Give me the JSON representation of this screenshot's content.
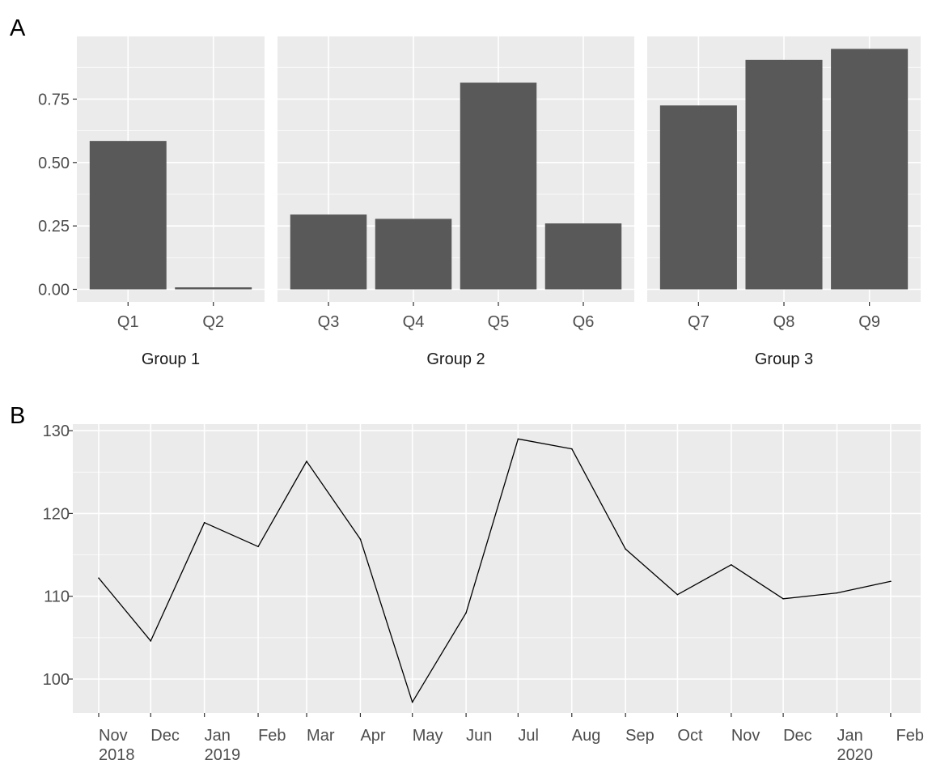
{
  "panel_tags": [
    "A",
    "B"
  ],
  "colors": {
    "panel_bg": "#ebebeb",
    "grid": "#ffffff",
    "bar_fill": "#595959",
    "line": "#000000",
    "tick_text": "#4d4d4d"
  },
  "chart_data": [
    {
      "type": "bar",
      "panel": "A",
      "facets": [
        {
          "label": "Group 1",
          "categories": [
            "Q1",
            "Q2"
          ],
          "values": [
            0.585,
            0.008
          ]
        },
        {
          "label": "Group 2",
          "categories": [
            "Q3",
            "Q4",
            "Q5",
            "Q6"
          ],
          "values": [
            0.295,
            0.278,
            0.815,
            0.26
          ]
        },
        {
          "label": "Group 3",
          "categories": [
            "Q7",
            "Q8",
            "Q9"
          ],
          "values": [
            0.725,
            0.905,
            0.948
          ]
        }
      ],
      "ylim": [
        0,
        1
      ],
      "yticks": [
        "0.00",
        "0.25",
        "0.50",
        "0.75"
      ],
      "ytick_values": [
        0,
        0.25,
        0.5,
        0.75
      ],
      "grid": true,
      "facet_labels_position": "bottom"
    },
    {
      "type": "line",
      "panel": "B",
      "x": [
        "2018-11",
        "2018-12",
        "2019-01",
        "2019-02",
        "2019-03",
        "2019-04",
        "2019-05",
        "2019-06",
        "2019-07",
        "2019-08",
        "2019-09",
        "2019-10",
        "2019-11",
        "2019-12",
        "2020-01",
        "2020-02"
      ],
      "y": [
        112.2,
        104.6,
        118.9,
        116.0,
        126.3,
        116.9,
        97.2,
        108.0,
        129.0,
        127.8,
        115.7,
        110.2,
        113.8,
        109.7,
        110.4,
        111.8
      ],
      "ylim": [
        95,
        130
      ],
      "yticks": [
        "100",
        "110",
        "120",
        "130"
      ],
      "ytick_values": [
        100,
        110,
        120,
        130
      ],
      "xtick_labels": [
        [
          "Nov",
          "2018"
        ],
        [
          "Dec"
        ],
        [
          "Jan",
          "2019"
        ],
        [
          "Feb"
        ],
        [
          "Mar"
        ],
        [
          "Apr"
        ],
        [
          "May"
        ],
        [
          "Jun"
        ],
        [
          "Jul"
        ],
        [
          "Aug"
        ],
        [
          "Sep"
        ],
        [
          "Oct"
        ],
        [
          "Nov"
        ],
        [
          "Dec"
        ],
        [
          "Jan",
          "2020"
        ],
        [
          "Feb"
        ]
      ],
      "grid": true
    }
  ]
}
